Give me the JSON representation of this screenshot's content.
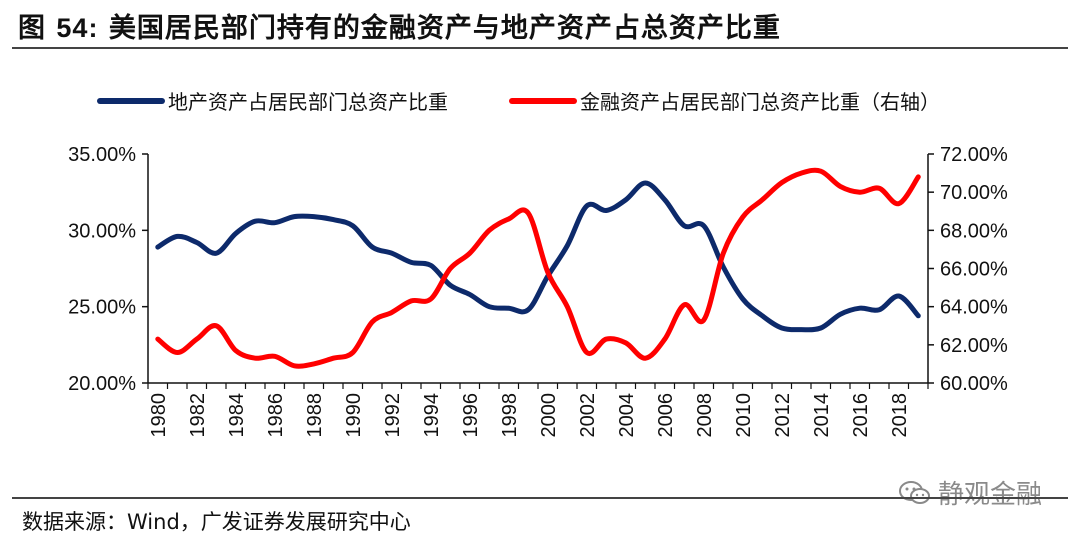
{
  "header": {
    "title_prefix": "图",
    "title_number": "54:",
    "title_text": "美国居民部门持有的金融资产与地产资产占总资产比重"
  },
  "footer": {
    "source": "数据来源：Wind，广发证券发展研究中心",
    "watermark": "静观金融",
    "watermark_icon": "wechat-icon"
  },
  "colors": {
    "left_series": "#0d2a6b",
    "right_series": "#ff0000",
    "axis": "#111111"
  },
  "chart_data": {
    "type": "line",
    "legend_placement": "top",
    "grid": false,
    "x": [
      1980,
      1981,
      1982,
      1983,
      1984,
      1985,
      1986,
      1987,
      1988,
      1989,
      1990,
      1991,
      1992,
      1993,
      1994,
      1995,
      1996,
      1997,
      1998,
      1999,
      2000,
      2001,
      2002,
      2003,
      2004,
      2005,
      2006,
      2007,
      2008,
      2009,
      2010,
      2011,
      2012,
      2013,
      2014,
      2015,
      2016,
      2017,
      2018,
      2019
    ],
    "x_tick_labels": [
      "1980",
      "1982",
      "1984",
      "1986",
      "1988",
      "1990",
      "1992",
      "1994",
      "1996",
      "1998",
      "2000",
      "2002",
      "2004",
      "2006",
      "2008",
      "2010",
      "2012",
      "2014",
      "2016",
      "2018"
    ],
    "y_left": {
      "min": 20,
      "max": 35,
      "ticks": [
        20,
        25,
        30,
        35
      ],
      "tick_labels": [
        "20.00%",
        "25.00%",
        "30.00%",
        "35.00%"
      ]
    },
    "y_right": {
      "min": 60,
      "max": 72,
      "ticks": [
        60,
        62,
        64,
        66,
        68,
        70,
        72
      ],
      "tick_labels": [
        "60.00%",
        "62.00%",
        "64.00%",
        "66.00%",
        "68.00%",
        "70.00%",
        "72.00%"
      ]
    },
    "series": [
      {
        "name": "地产资产占居民部门总资产比重",
        "axis": "left",
        "values": [
          28.9,
          29.6,
          29.2,
          28.5,
          29.8,
          30.6,
          30.5,
          30.9,
          30.9,
          30.7,
          30.3,
          28.9,
          28.5,
          27.9,
          27.7,
          26.4,
          25.8,
          25.0,
          24.9,
          24.8,
          27.0,
          29.0,
          31.6,
          31.3,
          32.0,
          33.1,
          32.0,
          30.3,
          30.3,
          27.6,
          25.5,
          24.4,
          23.6,
          23.5,
          23.6,
          24.5,
          24.9,
          24.8,
          25.7,
          24.4
        ]
      },
      {
        "name": "金融资产占居民部门总资产比重（右轴）",
        "axis": "right",
        "values": [
          62.3,
          61.6,
          62.3,
          63.0,
          61.7,
          61.3,
          61.4,
          60.9,
          61.0,
          61.3,
          61.6,
          63.2,
          63.7,
          64.3,
          64.4,
          66.0,
          66.8,
          68.0,
          68.6,
          68.9,
          65.8,
          64.0,
          61.6,
          62.3,
          62.1,
          61.3,
          62.3,
          64.1,
          63.3,
          66.8,
          68.7,
          69.6,
          70.5,
          71.0,
          71.1,
          70.3,
          70.0,
          70.2,
          69.4,
          70.8
        ]
      }
    ]
  }
}
